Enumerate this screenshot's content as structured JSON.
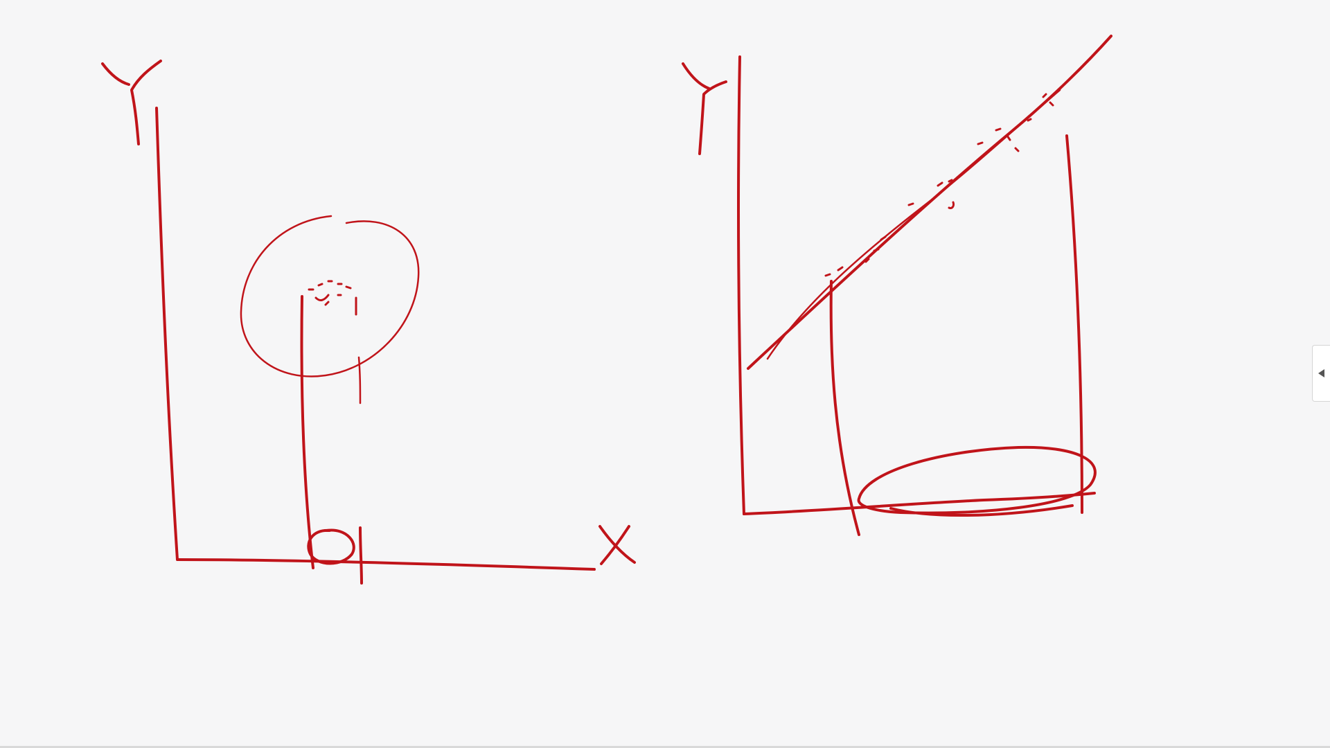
{
  "whiteboard": {
    "left_graph": {
      "y_axis_label": "Y",
      "x_axis_label": "X"
    },
    "right_graph": {
      "y_axis_label": "Y"
    },
    "ink_color": "#c0141a"
  },
  "side_panel": {
    "toggle_icon": "chevron-left-icon"
  }
}
